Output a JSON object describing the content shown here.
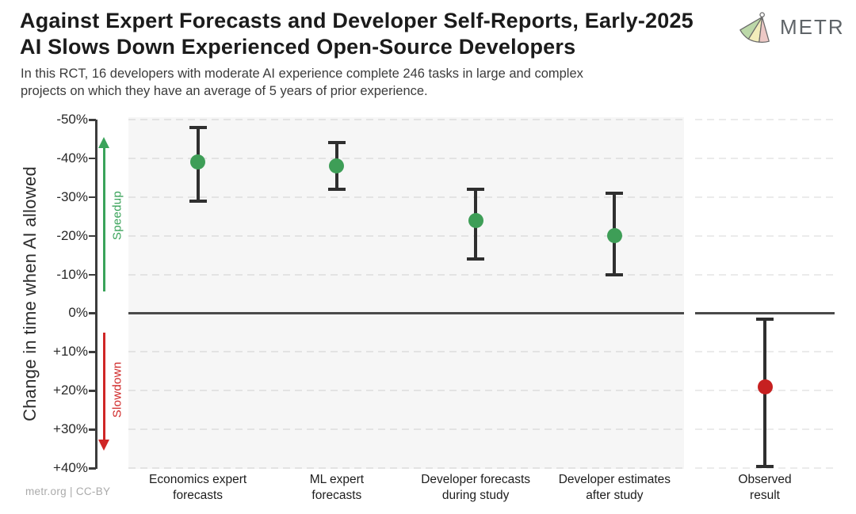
{
  "header": {
    "title": "Against Expert Forecasts and Developer Self-Reports, Early-2025\nAI Slows Down Experienced Open-Source Developers",
    "subtitle": "In this RCT, 16 developers with moderate AI experience complete 246 tasks in large and complex\nprojects on which they have an average of 5 years of prior experience.",
    "logo_text": "METR"
  },
  "footer": {
    "attribution": "metr.org  |  CC-BY"
  },
  "colors": {
    "dot_green": "#3e9e57",
    "dot_red": "#c62020",
    "speedup_green": "#3aa35a",
    "slowdown_red": "#cf2626",
    "errorbar_dark": "#2f2f2f",
    "panel_gray": "#f6f6f6",
    "zero_line": "#4a4a4a"
  },
  "chart_data": {
    "type": "scatter",
    "ylabel": "Change in time when AI allowed",
    "units": "% change in completion time when AI is allowed",
    "ylim": [
      -50,
      40
    ],
    "y_axis_inverted": true,
    "grid": "horizontal-dashed",
    "zero_line": 0,
    "legend_position": "none",
    "yticks": [
      {
        "v": -50,
        "label": "-50%"
      },
      {
        "v": -40,
        "label": "-40%"
      },
      {
        "v": -30,
        "label": "-30%"
      },
      {
        "v": -20,
        "label": "-20%"
      },
      {
        "v": -10,
        "label": "-10%"
      },
      {
        "v": 0,
        "label": "0%"
      },
      {
        "v": 10,
        "label": "+10%"
      },
      {
        "v": 20,
        "label": "+20%"
      },
      {
        "v": 30,
        "label": "+30%"
      },
      {
        "v": 40,
        "label": "+40%"
      }
    ],
    "annotations": {
      "speedup": {
        "label": "Speedup",
        "direction": "up",
        "color": "#3aa35a"
      },
      "slowdown": {
        "label": "Slowdown",
        "direction": "down",
        "color": "#cf2626"
      }
    },
    "panels": [
      {
        "name": "forecasts",
        "points": [
          {
            "label": "Economics expert\nforecasts",
            "value": -39,
            "ci": [
              -48,
              -29
            ],
            "color": "#3e9e57"
          },
          {
            "label": "ML expert\nforecasts",
            "value": -38,
            "ci": [
              -44,
              -32
            ],
            "color": "#3e9e57"
          },
          {
            "label": "Developer forecasts\nduring study",
            "value": -24,
            "ci": [
              -32,
              -14
            ],
            "color": "#3e9e57"
          },
          {
            "label": "Developer estimates\nafter study",
            "value": -20,
            "ci": [
              -31,
              -10
            ],
            "color": "#3e9e57"
          }
        ]
      },
      {
        "name": "observed",
        "points": [
          {
            "label": "Observed\nresult",
            "value": 19,
            "ci": [
              1.5,
              39.5
            ],
            "color": "#c62020"
          }
        ]
      }
    ]
  }
}
